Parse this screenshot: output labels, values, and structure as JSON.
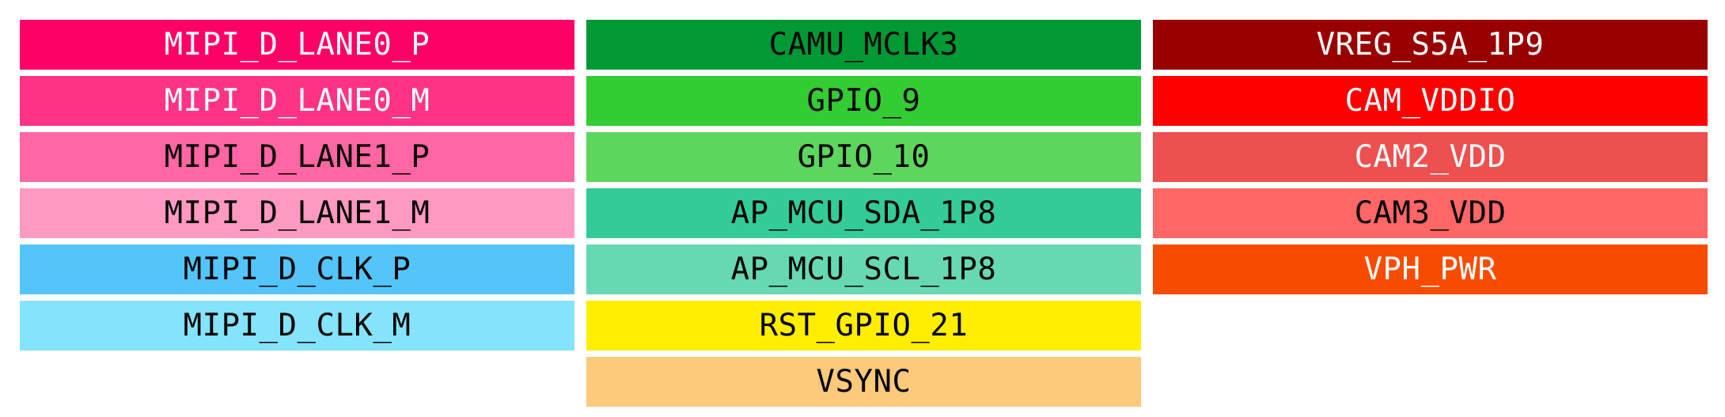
{
  "columns": [
    {
      "id": "left",
      "pins": [
        {
          "label": "MIPI_D_LANE0_P",
          "bg": "#ff0066",
          "fg": "#ffffff"
        },
        {
          "label": "MIPI_D_LANE0_M",
          "bg": "#ff3385",
          "fg": "#ffffff"
        },
        {
          "label": "MIPI_D_LANE1_P",
          "bg": "#ff66a3",
          "fg": "#000000"
        },
        {
          "label": "MIPI_D_LANE1_M",
          "bg": "#ff99c2",
          "fg": "#000000"
        },
        {
          "label": "MIPI_D_CLK_P",
          "bg": "#53c5fb",
          "fg": "#000000"
        },
        {
          "label": "MIPI_D_CLK_M",
          "bg": "#83e4fb",
          "fg": "#000000"
        }
      ]
    },
    {
      "id": "middle",
      "pins": [
        {
          "label": "CAMU_MCLK3",
          "bg": "#009933",
          "fg": "#000000"
        },
        {
          "label": "GPIO_9",
          "bg": "#33cc33",
          "fg": "#000000"
        },
        {
          "label": "GPIO_10",
          "bg": "#5cd65c",
          "fg": "#000000"
        },
        {
          "label": "AP_MCU_SDA_1P8",
          "bg": "#33cc99",
          "fg": "#000000"
        },
        {
          "label": "AP_MCU_SCL_1P8",
          "bg": "#66d9b3",
          "fg": "#000000"
        },
        {
          "label": "RST_GPIO_21",
          "bg": "#ffee00",
          "fg": "#000000"
        },
        {
          "label": "VSYNC",
          "bg": "#fdc97a",
          "fg": "#000000"
        }
      ]
    },
    {
      "id": "right",
      "pins": [
        {
          "label": "VREG_S5A_1P9",
          "bg": "#990000",
          "fg": "#ffffff"
        },
        {
          "label": "CAM_VDDIO",
          "bg": "#ff0000",
          "fg": "#ffffff"
        },
        {
          "label": "CAM2_VDD",
          "bg": "#ee5050",
          "fg": "#ffffff"
        },
        {
          "label": "CAM3_VDD",
          "bg": "#ff6666",
          "fg": "#000000"
        },
        {
          "label": "VPH_PWR",
          "bg": "#f74c00",
          "fg": "#ffffff"
        }
      ]
    }
  ]
}
